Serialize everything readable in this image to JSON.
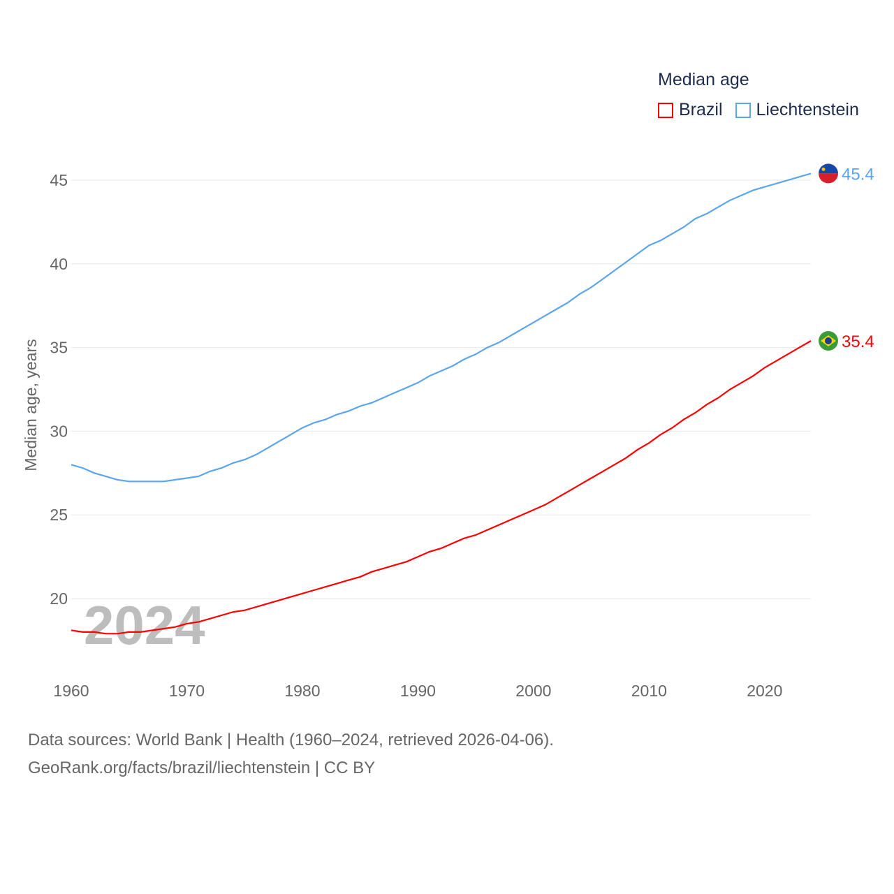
{
  "legend": {
    "title": "Median age",
    "items": [
      {
        "label": "Brazil",
        "color": "#ff0000"
      },
      {
        "label": "Liechtenstein",
        "color": "#5ba4ee"
      }
    ]
  },
  "footer": {
    "line1": "Data sources: World Bank | Health (1960–2024, retrieved 2026-04-06).",
    "line2": "GeoRank.org/facts/brazil/liechtenstein | CC BY"
  },
  "chart_data": {
    "type": "line",
    "title": "Median age",
    "ylabel": "Median age, years",
    "xlabel": "",
    "year_label": "2024",
    "xlim": [
      1960,
      2024
    ],
    "ylim": [
      20,
      45
    ],
    "xticks": [
      1960,
      1970,
      1980,
      1990,
      2000,
      2010,
      2020
    ],
    "yticks": [
      20,
      25,
      30,
      35,
      40,
      45
    ],
    "x": [
      1960,
      1961,
      1962,
      1963,
      1964,
      1965,
      1966,
      1967,
      1968,
      1969,
      1970,
      1971,
      1972,
      1973,
      1974,
      1975,
      1976,
      1977,
      1978,
      1979,
      1980,
      1981,
      1982,
      1983,
      1984,
      1985,
      1986,
      1987,
      1988,
      1989,
      1990,
      1991,
      1992,
      1993,
      1994,
      1995,
      1996,
      1997,
      1998,
      1999,
      2000,
      2001,
      2002,
      2003,
      2004,
      2005,
      2006,
      2007,
      2008,
      2009,
      2010,
      2011,
      2012,
      2013,
      2014,
      2015,
      2016,
      2017,
      2018,
      2019,
      2020,
      2021,
      2022,
      2023,
      2024
    ],
    "series": [
      {
        "name": "Brazil",
        "color": "#ff0000",
        "end_label": "35.4",
        "values": [
          18.1,
          18.0,
          18.0,
          17.9,
          17.9,
          18.0,
          18.0,
          18.1,
          18.2,
          18.3,
          18.5,
          18.6,
          18.8,
          19.0,
          19.2,
          19.3,
          19.5,
          19.7,
          19.9,
          20.1,
          20.3,
          20.5,
          20.7,
          20.9,
          21.1,
          21.3,
          21.6,
          21.8,
          22.0,
          22.2,
          22.5,
          22.8,
          23.0,
          23.3,
          23.6,
          23.8,
          24.1,
          24.4,
          24.7,
          25.0,
          25.3,
          25.6,
          26.0,
          26.4,
          26.8,
          27.2,
          27.6,
          28.0,
          28.4,
          28.9,
          29.3,
          29.8,
          30.2,
          30.7,
          31.1,
          31.6,
          32.0,
          32.5,
          32.9,
          33.3,
          33.8,
          34.2,
          34.6,
          35.0,
          35.4
        ]
      },
      {
        "name": "Liechtenstein",
        "color": "#5ba4ee",
        "end_label": "45.4",
        "values": [
          28.0,
          27.8,
          27.5,
          27.3,
          27.1,
          27.0,
          27.0,
          27.0,
          27.0,
          27.1,
          27.2,
          27.3,
          27.6,
          27.8,
          28.1,
          28.3,
          28.6,
          29.0,
          29.4,
          29.8,
          30.2,
          30.5,
          30.7,
          31.0,
          31.2,
          31.5,
          31.7,
          32.0,
          32.3,
          32.6,
          32.9,
          33.3,
          33.6,
          33.9,
          34.3,
          34.6,
          35.0,
          35.3,
          35.7,
          36.1,
          36.5,
          36.9,
          37.3,
          37.7,
          38.2,
          38.6,
          39.1,
          39.6,
          40.1,
          40.6,
          41.1,
          41.4,
          41.8,
          42.2,
          42.7,
          43.0,
          43.4,
          43.8,
          44.1,
          44.4,
          44.6,
          44.8,
          45.0,
          45.2,
          45.4
        ]
      }
    ]
  }
}
